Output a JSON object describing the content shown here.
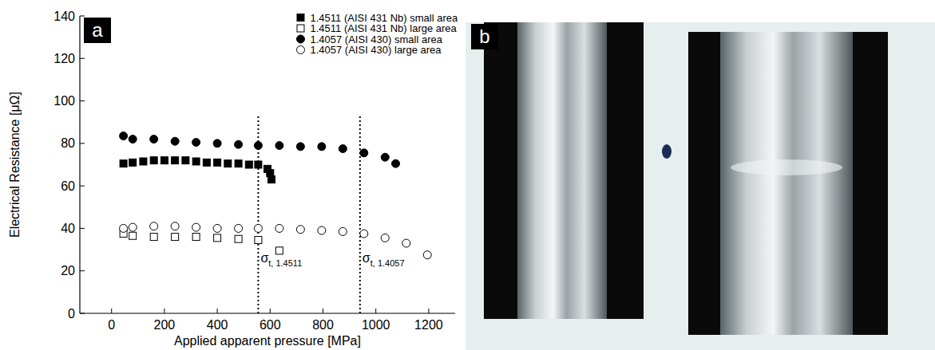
{
  "chart_data": {
    "type": "scatter",
    "panel_label": "a",
    "x_label": "Applied apparent pressure [MPa]",
    "y_label": "Electrical Resistance [μΩ]",
    "xlim": [
      -120,
      1300
    ],
    "xticks": [
      0,
      200,
      400,
      600,
      800,
      1000,
      1200
    ],
    "ylim": [
      0,
      140
    ],
    "yticks": [
      0,
      20,
      40,
      60,
      80,
      100,
      120,
      140
    ],
    "legend": "top-right",
    "grid": false,
    "series": [
      {
        "name": "1.4511 (AISI 431 Nb) small area",
        "color": "#000000",
        "marker": "square-filled",
        "x": [
          45,
          80,
          120,
          160,
          200,
          240,
          280,
          320,
          360,
          400,
          440,
          480,
          520,
          555,
          590,
          600,
          605
        ],
        "values": [
          70.5,
          71,
          71.5,
          72,
          72,
          72,
          72,
          71.5,
          71,
          71,
          70.5,
          70.5,
          70,
          70,
          68,
          66,
          63
        ]
      },
      {
        "name": "1.4511 (AISI 431 Nb) large area",
        "color": "#000000",
        "marker": "square-open",
        "x": [
          45,
          80,
          160,
          240,
          320,
          400,
          480,
          555,
          635
        ],
        "values": [
          37.5,
          36.5,
          36,
          36,
          36,
          35.5,
          35,
          34.5,
          29.5
        ]
      },
      {
        "name": "1.4057 (AISI 430) small area",
        "color": "#000000",
        "marker": "circle-filled",
        "x": [
          45,
          80,
          160,
          240,
          320,
          400,
          480,
          555,
          635,
          715,
          795,
          875,
          955,
          1035,
          1075
        ],
        "values": [
          83.5,
          82,
          82,
          81,
          80.5,
          80,
          79.5,
          79,
          79,
          78.5,
          78.5,
          77.5,
          75.5,
          73.5,
          70.5
        ]
      },
      {
        "name": "1.4057 (AISI 430) large area",
        "color": "#000000",
        "marker": "circle-open",
        "x": [
          45,
          80,
          160,
          240,
          320,
          400,
          480,
          555,
          635,
          715,
          795,
          875,
          955,
          1035,
          1115,
          1195
        ],
        "values": [
          40,
          40.5,
          41,
          41,
          40.5,
          40,
          40,
          40,
          40,
          39.5,
          39,
          38.5,
          37.5,
          35.5,
          33,
          27.5
        ]
      }
    ],
    "annotations": [
      {
        "text": "σ",
        "subscript": "t, 1.4511",
        "x": 555,
        "y_top": 93,
        "line_style": "dotted"
      },
      {
        "text": "σ",
        "subscript": "t, 1.4057",
        "x": 940,
        "y_top": 93,
        "line_style": "dotted"
      }
    ]
  },
  "image_panel": {
    "panel_label": "b"
  }
}
